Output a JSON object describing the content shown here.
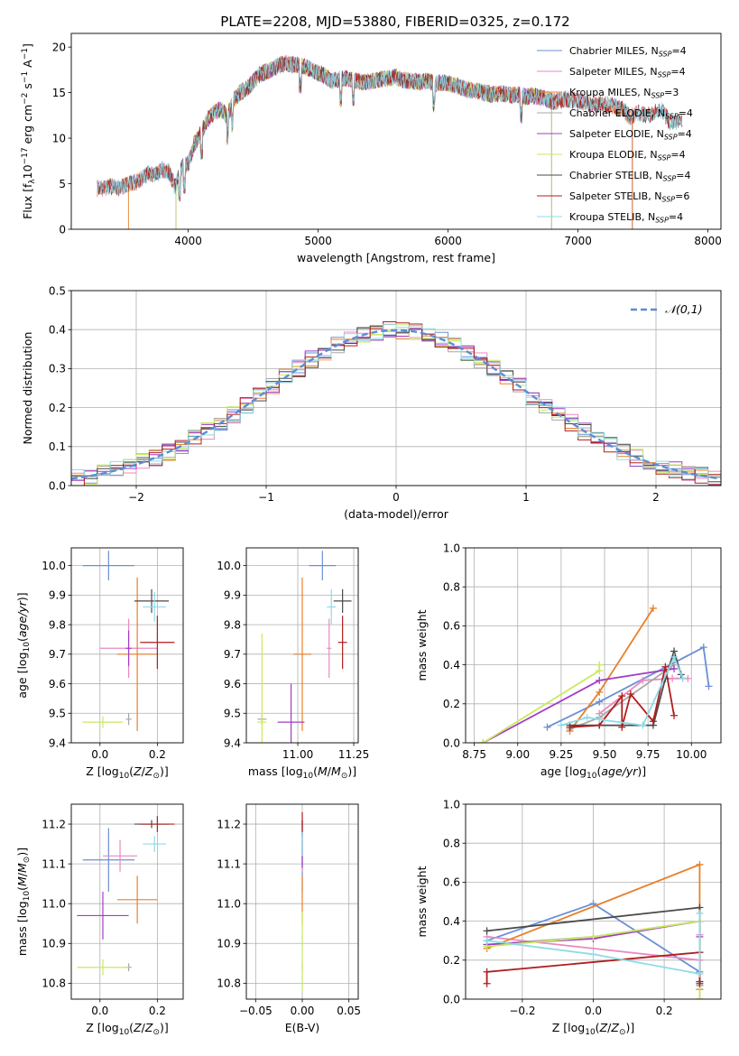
{
  "figure_title": "PLATE=2208, MJD=53880, FIBERID=0325, z=0.172",
  "models": [
    {
      "key": "chab_miles",
      "color": "#6b8fd6",
      "spectrum_legend": "Chabrier MILES, N",
      "ssp": "SSP",
      "n": "=4"
    },
    {
      "key": "salp_miles",
      "color": "#e88ac0",
      "spectrum_legend": "Salpeter MILES, N",
      "ssp": "SSP",
      "n": "=4"
    },
    {
      "key": "krou_miles",
      "color": "#e8812b",
      "spectrum_legend": "Kroupa MILES, N",
      "ssp": "SSP",
      "n": "=3"
    },
    {
      "key": "chab_elodie",
      "color": "#a8a8a8",
      "spectrum_legend": "Chabrier ELODIE, N",
      "ssp": "SSP",
      "n": "=4"
    },
    {
      "key": "salp_elodie",
      "color": "#a33cc4",
      "spectrum_legend": "Salpeter ELODIE, N",
      "ssp": "SSP",
      "n": "=4"
    },
    {
      "key": "krou_elodie",
      "color": "#c9ea5d",
      "spectrum_legend": "Kroupa ELODIE, N",
      "ssp": "SSP",
      "n": "=4"
    },
    {
      "key": "chab_stelib",
      "color": "#4a4a4a",
      "spectrum_legend": "Chabrier STELIB, N",
      "ssp": "SSP",
      "n": "=4"
    },
    {
      "key": "salp_stelib",
      "color": "#b01e1e",
      "spectrum_legend": "Salpeter STELIB, N",
      "ssp": "SSP",
      "n": "=6"
    },
    {
      "key": "krou_stelib",
      "color": "#8ddbe8",
      "spectrum_legend": "Kroupa STELIB, N",
      "ssp": "SSP",
      "n": "=4"
    }
  ],
  "chart_data": [
    {
      "id": "spectrum",
      "type": "line",
      "xlabel": "wavelength [Angstrom, rest frame]",
      "ylabel": "Flux [f",
      "xlim": [
        3100,
        8100
      ],
      "ylim": [
        0,
        21.5
      ],
      "xticks": [
        4000,
        5000,
        6000,
        7000,
        8000
      ],
      "yticks": [
        0,
        5,
        10,
        15,
        20
      ],
      "grid": false,
      "legend_placement": "upper-right",
      "envelope": {
        "x": [
          3300,
          3350,
          3400,
          3450,
          3500,
          3550,
          3600,
          3650,
          3700,
          3750,
          3800,
          3850,
          3900,
          3950,
          4000,
          4050,
          4100,
          4150,
          4200,
          4250,
          4300,
          4350,
          4400,
          4450,
          4500,
          4550,
          4600,
          4650,
          4700,
          4750,
          4800,
          4850,
          4900,
          4950,
          5000,
          5050,
          5100,
          5150,
          5200,
          5250,
          5300,
          5350,
          5400,
          5450,
          5500,
          5550,
          5600,
          5650,
          5700,
          5750,
          5800,
          5850,
          5900,
          5950,
          6000,
          6050,
          6100,
          6150,
          6200,
          6250,
          6300,
          6350,
          6400,
          6450,
          6500,
          6550,
          6600,
          6650,
          6700,
          6750,
          6800,
          6850,
          6900,
          6950,
          7000,
          7050,
          7100,
          7150,
          7200,
          7250,
          7300,
          7350,
          7400,
          7450,
          7500,
          7550,
          7600,
          7650,
          7700,
          7750
        ],
        "y": [
          4.5,
          4.4,
          4.8,
          4.5,
          4.7,
          5.0,
          5.2,
          5.6,
          6.2,
          6.0,
          6.6,
          6.3,
          4.6,
          6.8,
          7.2,
          9.5,
          10.6,
          12.1,
          12.8,
          13.2,
          12.4,
          14.2,
          15.0,
          15.4,
          16.2,
          17.0,
          17.3,
          17.6,
          18.0,
          18.2,
          18.1,
          18.0,
          17.8,
          17.5,
          17.2,
          16.8,
          16.3,
          16.4,
          16.6,
          16.5,
          16.3,
          16.1,
          16.2,
          16.4,
          16.5,
          16.6,
          16.7,
          16.4,
          16.3,
          16.2,
          16.2,
          16.3,
          15.9,
          16.1,
          16.0,
          15.8,
          15.6,
          15.3,
          15.2,
          15.1,
          14.9,
          14.8,
          14.9,
          14.8,
          14.7,
          14.8,
          14.5,
          14.7,
          14.5,
          14.4,
          14.0,
          14.1,
          14.3,
          14.2,
          14.1,
          13.9,
          13.8,
          13.7,
          13.7,
          13.6,
          13.4,
          13.1,
          12.3,
          12.8,
          12.6,
          12.5,
          12.9,
          13.0,
          11.9,
          11.8
        ]
      },
      "series": [
        {
          "model": "chab_miles",
          "xmin": 3300,
          "xmax": 7420
        },
        {
          "model": "salp_miles",
          "xmin": 3300,
          "xmax": 7420
        },
        {
          "model": "krou_miles",
          "xmin": 3300,
          "xmax": 7420
        },
        {
          "model": "chab_elodie",
          "xmin": 3900,
          "xmax": 6800
        },
        {
          "model": "salp_elodie",
          "xmin": 3900,
          "xmax": 6800
        },
        {
          "model": "krou_elodie",
          "xmin": 3900,
          "xmax": 6800
        },
        {
          "model": "chab_stelib",
          "xmin": 3300,
          "xmax": 7800
        },
        {
          "model": "salp_stelib",
          "xmin": 3300,
          "xmax": 7800
        },
        {
          "model": "krou_stelib",
          "xmin": 3300,
          "xmax": 7800
        }
      ]
    },
    {
      "id": "residuals",
      "type": "line",
      "xlabel": "(data-model)/error",
      "ylabel": "Normed distribution",
      "xlim": [
        -2.5,
        2.5
      ],
      "ylim": [
        0,
        0.5
      ],
      "xticks": [
        -2,
        -1,
        0,
        1,
        2
      ],
      "yticks": [
        0.0,
        0.1,
        0.2,
        0.3,
        0.4,
        0.5
      ],
      "grid": true,
      "legend_placement": "upper-right",
      "reference_label": "𝒩(0,1)",
      "reference_color": "#5b8dd6",
      "bin_width": 0.1,
      "histogram_model": "normal pdf"
    },
    {
      "id": "age_vs_Z",
      "type": "scatter",
      "xlabel": "Z [log",
      "ylabel": "age  [log",
      "xlim": [
        -0.1,
        0.29
      ],
      "ylim": [
        9.4,
        10.06
      ],
      "xticks": [
        0.0,
        0.2
      ],
      "yticks": [
        9.4,
        9.5,
        9.6,
        9.7,
        9.8,
        9.9,
        10.0
      ],
      "grid": true,
      "points": [
        {
          "model": "chab_miles",
          "x": 0.03,
          "xerr": 0.09,
          "y": 10.0,
          "yerr": 0.05
        },
        {
          "model": "salp_miles",
          "x": 0.1,
          "xerr": 0.1,
          "y": 9.72,
          "yerr": 0.1
        },
        {
          "model": "krou_miles",
          "x": 0.13,
          "xerr": 0.07,
          "y": 9.7,
          "yerr": 0.26
        },
        {
          "model": "chab_elodie",
          "x": 0.1,
          "xerr": 0.01,
          "y": 9.48,
          "yerr": 0.02
        },
        {
          "model": "salp_elodie",
          "x": 0.1,
          "xerr": 0.01,
          "y": 9.72,
          "yerr": 0.06
        },
        {
          "model": "krou_elodie",
          "x": 0.01,
          "xerr": 0.07,
          "y": 9.47,
          "yerr": 0.02
        },
        {
          "model": "chab_stelib",
          "x": 0.18,
          "xerr": 0.06,
          "y": 9.88,
          "yerr": 0.04
        },
        {
          "model": "salp_stelib",
          "x": 0.2,
          "xerr": 0.06,
          "y": 9.74,
          "yerr": 0.09
        },
        {
          "model": "krou_stelib",
          "x": 0.19,
          "xerr": 0.04,
          "y": 9.86,
          "yerr": 0.05
        }
      ]
    },
    {
      "id": "age_vs_mass",
      "type": "scatter",
      "xlabel": "mass [log",
      "ylabel": "",
      "xlim": [
        10.77,
        11.27
      ],
      "ylim": [
        9.4,
        10.06
      ],
      "xticks": [
        11.0,
        11.25
      ],
      "yticks": [
        9.4,
        9.5,
        9.6,
        9.7,
        9.8,
        9.9,
        10.0
      ],
      "grid": true,
      "points": [
        {
          "model": "chab_miles",
          "x": 11.11,
          "xerr": 0.06,
          "y": 10.0,
          "yerr": 0.05
        },
        {
          "model": "salp_miles",
          "x": 11.14,
          "xerr": 0.01,
          "y": 9.72,
          "yerr": 0.1
        },
        {
          "model": "krou_miles",
          "x": 11.02,
          "xerr": 0.04,
          "y": 9.7,
          "yerr": 0.26
        },
        {
          "model": "chab_elodie",
          "x": 10.84,
          "xerr": 0.02,
          "y": 9.48,
          "yerr": 0.02
        },
        {
          "model": "salp_elodie",
          "x": 10.97,
          "xerr": 0.06,
          "y": 9.47,
          "yerr": 0.13
        },
        {
          "model": "krou_elodie",
          "x": 10.84,
          "xerr": 0.02,
          "y": 9.47,
          "yerr": 0.3
        },
        {
          "model": "chab_stelib",
          "x": 11.2,
          "xerr": 0.04,
          "y": 9.88,
          "yerr": 0.04
        },
        {
          "model": "salp_stelib",
          "x": 11.2,
          "xerr": 0.02,
          "y": 9.74,
          "yerr": 0.09
        },
        {
          "model": "krou_stelib",
          "x": 11.15,
          "xerr": 0.02,
          "y": 9.86,
          "yerr": 0.06
        }
      ]
    },
    {
      "id": "massweight_vs_age",
      "type": "line",
      "xlabel": "age  [log",
      "ylabel": "mass weight",
      "xlim": [
        8.7,
        10.17
      ],
      "ylim": [
        0,
        1.0
      ],
      "xticks": [
        8.75,
        9.0,
        9.25,
        9.5,
        9.75,
        10.0
      ],
      "yticks": [
        0.0,
        0.2,
        0.4,
        0.6,
        0.8,
        1.0
      ],
      "grid": true,
      "series": [
        {
          "model": "chab_miles",
          "x": [
            9.17,
            9.47,
            10.07,
            10.1
          ],
          "y": [
            0.08,
            0.21,
            0.49,
            0.29
          ]
        },
        {
          "model": "salp_miles",
          "x": [
            9.47,
            9.72,
            9.89,
            9.98
          ],
          "y": [
            0.15,
            0.32,
            0.33,
            0.33
          ]
        },
        {
          "model": "krou_miles",
          "x": [
            9.3,
            9.47,
            9.78
          ],
          "y": [
            0.06,
            0.26,
            0.69
          ]
        },
        {
          "model": "chab_elodie",
          "x": [
            9.3,
            9.47,
            9.9
          ],
          "y": [
            0.07,
            0.13,
            0.4
          ]
        },
        {
          "model": "salp_elodie",
          "x": [
            8.8,
            9.47,
            9.9
          ],
          "y": [
            0.0,
            0.32,
            0.38
          ]
        },
        {
          "model": "krou_elodie",
          "x": [
            8.8,
            9.47,
            9.47
          ],
          "y": [
            0.0,
            0.37,
            0.4
          ]
        },
        {
          "model": "chab_stelib",
          "x": [
            9.3,
            9.47,
            9.78,
            9.85,
            9.9,
            9.94
          ],
          "y": [
            0.09,
            0.09,
            0.09,
            0.33,
            0.47,
            0.35
          ]
        },
        {
          "model": "salp_stelib",
          "x": [
            9.3,
            9.47,
            9.6,
            9.6,
            9.65,
            9.78,
            9.85,
            9.9
          ],
          "y": [
            0.08,
            0.09,
            0.24,
            0.08,
            0.25,
            0.11,
            0.39,
            0.14
          ]
        },
        {
          "model": "krou_stelib",
          "x": [
            9.25,
            9.4,
            9.47,
            9.72,
            9.9,
            9.95
          ],
          "y": [
            0.09,
            0.13,
            0.12,
            0.09,
            0.44,
            0.33
          ]
        }
      ]
    },
    {
      "id": "mass_vs_Z",
      "type": "scatter",
      "xlabel": "Z [log",
      "ylabel": "mass [log",
      "xlim": [
        -0.1,
        0.29
      ],
      "ylim": [
        10.76,
        11.25
      ],
      "xticks": [
        0.0,
        0.2
      ],
      "yticks": [
        10.8,
        10.9,
        11.0,
        11.1,
        11.2
      ],
      "grid": true,
      "points": [
        {
          "model": "chab_miles",
          "x": 0.03,
          "xerr": 0.09,
          "y": 11.11,
          "yerr": 0.08
        },
        {
          "model": "salp_miles",
          "x": 0.07,
          "xerr": 0.06,
          "y": 11.12,
          "yerr": 0.04
        },
        {
          "model": "krou_miles",
          "x": 0.13,
          "xerr": 0.07,
          "y": 11.01,
          "yerr": 0.06
        },
        {
          "model": "chab_elodie",
          "x": 0.1,
          "xerr": 0.01,
          "y": 10.84,
          "yerr": 0.01
        },
        {
          "model": "salp_elodie",
          "x": 0.01,
          "xerr": 0.09,
          "y": 10.97,
          "yerr": 0.06
        },
        {
          "model": "krou_elodie",
          "x": 0.01,
          "xerr": 0.09,
          "y": 10.84,
          "yerr": 0.02
        },
        {
          "model": "chab_stelib",
          "x": 0.18,
          "xerr": 0.06,
          "y": 11.2,
          "yerr": 0.01
        },
        {
          "model": "salp_stelib",
          "x": 0.2,
          "xerr": 0.06,
          "y": 11.2,
          "yerr": 0.02
        },
        {
          "model": "krou_stelib",
          "x": 0.19,
          "xerr": 0.04,
          "y": 11.15,
          "yerr": 0.02
        }
      ]
    },
    {
      "id": "mass_vs_ebv",
      "type": "scatter",
      "xlabel": "E(B-V)",
      "ylabel": "",
      "xlim": [
        -0.06,
        0.06
      ],
      "ylim": [
        10.76,
        11.25
      ],
      "xticks": [
        -0.05,
        0.0,
        0.05
      ],
      "xtick_labels": [
        "−0.05",
        "0.00",
        "0.05"
      ],
      "yticks": [
        10.8,
        10.9,
        11.0,
        11.1,
        11.2
      ],
      "grid": true,
      "points": [
        {
          "model": "chab_miles",
          "x": 0.0,
          "xerr": 0.0,
          "y": 11.11,
          "yerr": 0.08
        },
        {
          "model": "salp_miles",
          "x": 0.0,
          "xerr": 0.0,
          "y": 11.12,
          "yerr": 0.04
        },
        {
          "model": "krou_miles",
          "x": 0.0,
          "xerr": 0.0,
          "y": 11.01,
          "yerr": 0.06
        },
        {
          "model": "chab_elodie",
          "x": 0.0,
          "xerr": 0.0,
          "y": 10.84,
          "yerr": 0.01
        },
        {
          "model": "salp_elodie",
          "x": 0.0,
          "xerr": 0.0,
          "y": 11.15,
          "yerr": 0.06
        },
        {
          "model": "krou_elodie",
          "x": 0.0,
          "xerr": 0.0,
          "y": 10.88,
          "yerr": 0.1
        },
        {
          "model": "chab_stelib",
          "x": 0.0,
          "xerr": 0.0,
          "y": 11.2,
          "yerr": 0.01
        },
        {
          "model": "salp_stelib",
          "x": 0.0,
          "xerr": 0.0,
          "y": 11.2,
          "yerr": 0.03
        },
        {
          "model": "krou_stelib",
          "x": 0.0,
          "xerr": 0.0,
          "y": 11.15,
          "yerr": 0.03
        }
      ]
    },
    {
      "id": "massweight_vs_Z",
      "type": "line",
      "xlabel": "Z [log",
      "ylabel": "mass weight",
      "xlim": [
        -0.36,
        0.36
      ],
      "ylim": [
        0,
        1.0
      ],
      "xticks": [
        -0.2,
        0.0,
        0.2
      ],
      "xtick_labels": [
        "−0.2",
        "0.0",
        "0.2"
      ],
      "yticks": [
        0.0,
        0.2,
        0.4,
        0.6,
        0.8,
        1.0
      ],
      "grid": true,
      "series": [
        {
          "model": "chab_miles",
          "x": [
            -0.3,
            0.0,
            0.3,
            0.3
          ],
          "y": [
            0.3,
            0.49,
            0.14,
            0.07
          ]
        },
        {
          "model": "salp_miles",
          "x": [
            -0.3,
            0.3,
            0.3
          ],
          "y": [
            0.32,
            0.2,
            0.33
          ]
        },
        {
          "model": "krou_miles",
          "x": [
            -0.3,
            0.3,
            0.3
          ],
          "y": [
            0.26,
            0.69,
            0.05
          ]
        },
        {
          "model": "chab_elodie",
          "x": [
            -0.3,
            0.0,
            0.3,
            0.3
          ],
          "y": [
            0.28,
            0.32,
            0.4,
            0.0
          ]
        },
        {
          "model": "salp_elodie",
          "x": [
            -0.3,
            0.0,
            0.3,
            0.3
          ],
          "y": [
            0.28,
            0.31,
            0.4,
            0.32
          ]
        },
        {
          "model": "krou_elodie",
          "x": [
            -0.3,
            0.0,
            0.3,
            0.3
          ],
          "y": [
            0.27,
            0.32,
            0.4,
            0.0
          ]
        },
        {
          "model": "chab_stelib",
          "x": [
            -0.3,
            0.3,
            0.3,
            0.3
          ],
          "y": [
            0.35,
            0.47,
            0.24,
            0.09
          ]
        },
        {
          "model": "salp_stelib",
          "x": [
            -0.3,
            -0.3,
            0.3,
            0.3
          ],
          "y": [
            0.08,
            0.14,
            0.24,
            0.08
          ]
        },
        {
          "model": "krou_stelib",
          "x": [
            -0.3,
            0.0,
            0.3,
            0.3
          ],
          "y": [
            0.3,
            0.23,
            0.13,
            0.44
          ]
        }
      ]
    }
  ]
}
